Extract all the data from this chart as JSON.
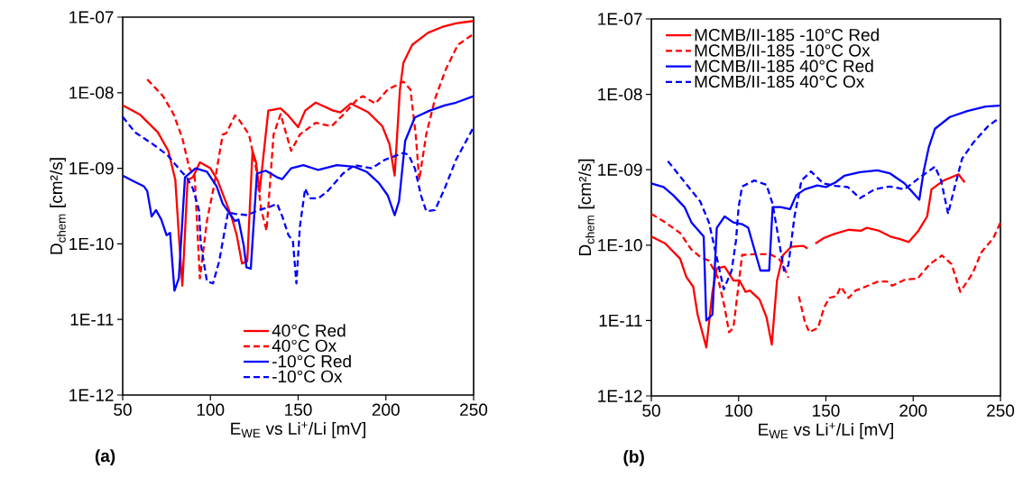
{
  "chart_data": [
    {
      "type": "line",
      "xlabel": "E$_{WE}$ vs Li$^{+}$/Li [mV]",
      "ylabel": "D$_{chem}$ [cm²/s]",
      "log": "y",
      "legend": "bottom",
      "grid": false,
      "marker": "none",
      "xlim": [
        50,
        250
      ],
      "xticks": [
        50,
        100,
        150,
        200,
        250
      ],
      "ylim": [
        1e-12,
        1e-07
      ],
      "yticks": [
        {
          "value": 1e-12,
          "label": "1E-12"
        },
        {
          "value": 1e-11,
          "label": "1E-11"
        },
        {
          "value": 1e-10,
          "label": "1E-10"
        },
        {
          "value": 1e-09,
          "label": "1E-09"
        },
        {
          "value": 1e-08,
          "label": "1E-08"
        },
        {
          "value": 1e-07,
          "label": "1E-07"
        }
      ],
      "annotations": [
        "(a)"
      ],
      "series": [
        {
          "name": "40°C Red",
          "color": "#ff0000",
          "line_style": "solid",
          "x": [
            50,
            60,
            70,
            76,
            80,
            82,
            84,
            87,
            90,
            94,
            100,
            104,
            108,
            112,
            115,
            118,
            121,
            124,
            126,
            128,
            133,
            140,
            144,
            150,
            154,
            160,
            170,
            174,
            180,
            190,
            198,
            202,
            205,
            208,
            210,
            215,
            224,
            232,
            240,
            250
          ],
          "values": [
            6.8e-09,
            5.1e-09,
            3e-09,
            1.7e-09,
            7e-10,
            1.3e-10,
            2.8e-11,
            7e-10,
            7.6e-10,
            1.2e-09,
            1e-09,
            7e-10,
            4e-10,
            2.3e-10,
            1.3e-10,
            5.5e-11,
            5.9e-11,
            1.7e-09,
            1.2e-09,
            4.9e-10,
            5.8e-09,
            6.2e-09,
            5.1e-09,
            3.5e-09,
            5.8e-09,
            7.4e-09,
            5.8e-09,
            5.5e-09,
            7.2e-09,
            5.5e-09,
            3.6e-09,
            2.1e-09,
            8e-10,
            1.1e-08,
            2.5e-08,
            4.3e-08,
            6.2e-08,
            7.4e-08,
            8.3e-08,
            8.9e-08
          ]
        },
        {
          "name": "40°C Ox",
          "color": "#ff0000",
          "line_style": "dashed",
          "x": [
            64,
            73,
            79,
            84,
            88,
            91,
            94,
            98,
            102,
            107,
            109,
            114,
            116,
            122,
            126,
            129,
            132,
            136,
            140,
            146,
            151,
            160,
            169,
            176,
            184,
            187,
            194,
            201,
            210,
            214,
            217,
            219,
            223,
            228,
            234,
            241,
            250
          ],
          "values": [
            1.5e-08,
            9e-09,
            5.2e-09,
            2.5e-09,
            1e-09,
            8e-10,
            3.5e-11,
            2e-10,
            5.8e-10,
            2.8e-09,
            2.9e-09,
            5e-09,
            4.5e-09,
            2.8e-09,
            1e-09,
            2.8e-10,
            1.5e-10,
            2.8e-09,
            5.2e-09,
            1.7e-09,
            2.8e-09,
            4e-09,
            3.6e-09,
            5.2e-09,
            8.3e-09,
            9e-09,
            7.2e-09,
            1.1e-08,
            1.4e-08,
            1.1e-08,
            2.8e-09,
            7e-10,
            2.8e-09,
            8.3e-09,
            2e-08,
            4.3e-08,
            6e-08
          ]
        },
        {
          "name": "-10°C Red",
          "color": "#0000ff",
          "line_style": "solid",
          "x": [
            50,
            57,
            62,
            64,
            66.5,
            69,
            72,
            75,
            77,
            79.5,
            82,
            85.5,
            91.5,
            98,
            103.5,
            107,
            114,
            116,
            119,
            120.5,
            123,
            126.5,
            131.5,
            138,
            141,
            146,
            153,
            161.5,
            172,
            182,
            189,
            196,
            201,
            205,
            207.5,
            211,
            216.5,
            225,
            233.5,
            240,
            250
          ],
          "values": [
            8e-10,
            6.6e-10,
            5.8e-10,
            5e-10,
            2.3e-10,
            2.8e-10,
            2.1e-10,
            1.3e-10,
            1.4e-10,
            2.4e-11,
            3.5e-11,
            7.6e-10,
            1e-09,
            9e-10,
            5.8e-10,
            3.4e-10,
            2e-10,
            2.1e-10,
            9.5e-11,
            4.9e-11,
            4.7e-11,
            8.5e-10,
            9.3e-10,
            7.6e-10,
            7.2e-10,
            1e-09,
            1.1e-09,
            9.5e-10,
            1.1e-09,
            1.05e-09,
            9e-10,
            6.4e-10,
            4.4e-10,
            2.4e-10,
            3.7e-10,
            2.3e-09,
            4.7e-09,
            5.8e-09,
            6.8e-09,
            7.4e-09,
            9e-09
          ]
        },
        {
          "name": "-10°C Ox",
          "color": "#0000ff",
          "line_style": "dashed",
          "x": [
            50,
            57,
            67,
            75.5,
            83,
            86.5,
            90,
            93.5,
            94.5,
            98,
            101.5,
            105,
            110,
            114,
            121,
            127.5,
            132.5,
            138,
            141,
            144.5,
            147,
            149,
            151,
            154,
            156.5,
            161.5,
            166.5,
            175.5,
            182,
            192,
            199.5,
            210,
            213,
            216.5,
            220,
            223,
            228,
            233.5,
            240,
            250
          ],
          "values": [
            4.8e-09,
            3e-09,
            2.1e-09,
            1.5e-09,
            9.3e-10,
            7.6e-10,
            5.4e-10,
            2.8e-10,
            1e-10,
            3.2e-11,
            3e-11,
            5.9e-11,
            2.6e-10,
            2.5e-10,
            2.4e-10,
            2.8e-10,
            3e-10,
            3.4e-10,
            2.3e-10,
            1.3e-10,
            1.1e-10,
            3e-11,
            1.7e-10,
            5.4e-10,
            4e-10,
            4e-10,
            4.9e-10,
            8.5e-10,
            1.1e-09,
            1e-09,
            1.3e-09,
            1.6e-09,
            1.5e-09,
            1e-09,
            4.4e-10,
            2.7e-10,
            2.8e-10,
            5.4e-10,
            1.3e-09,
            3.5e-09
          ]
        }
      ]
    },
    {
      "type": "line",
      "xlabel": "E$_{WE}$ vs Li$^{+}$/Li [mV]",
      "ylabel": "D$_{chem}$ [cm²/s]",
      "log": "y",
      "legend": "top left",
      "grid": false,
      "marker": "none",
      "xlim": [
        50,
        250
      ],
      "xticks": [
        50,
        100,
        150,
        200,
        250
      ],
      "ylim": [
        1e-12,
        1e-07
      ],
      "yticks": [
        {
          "value": 1e-12,
          "label": "1E-12"
        },
        {
          "value": 1e-11,
          "label": "1E-11"
        },
        {
          "value": 1e-10,
          "label": "1E-10"
        },
        {
          "value": 1e-09,
          "label": "1E-09"
        },
        {
          "value": 1e-08,
          "label": "1E-08"
        },
        {
          "value": 1e-07,
          "label": "1E-07"
        }
      ],
      "annotations": [
        "(b)"
      ],
      "series": [
        {
          "name": "MCMB/II-185 -10°C Red",
          "color": "#ff0000",
          "line_style": "solid",
          "x": [
            50,
            58,
            66.5,
            70,
            74,
            76.5,
            81.5,
            85,
            87.5,
            92,
            97,
            100.5,
            104,
            106.5,
            112,
            116,
            119,
            122,
            125.5,
            130,
            137,
            139.5,
            142,
            144,
            149,
            154.5,
            163,
            170,
            173.5,
            180.5,
            187,
            192.5,
            197.5,
            203,
            208,
            210.5,
            217.5,
            226,
            229.5
          ],
          "values": [
            1.3e-10,
            1.05e-10,
            6.6e-11,
            3.8e-11,
            2.8e-11,
            1.2e-11,
            4.4e-12,
            2.4e-11,
            4.9e-11,
            5.2e-11,
            3.4e-11,
            3.4e-11,
            2.4e-11,
            2.5e-11,
            1.9e-11,
            1.1e-11,
            4.8e-12,
            3.4e-11,
            7.4e-11,
            9.5e-11,
            9.8e-11,
            9e-11,
            null,
            1.05e-10,
            1.25e-10,
            1.4e-10,
            1.6e-10,
            1.55e-10,
            1.7e-10,
            1.55e-10,
            1.3e-10,
            1.2e-10,
            1.1e-10,
            1.55e-10,
            2.4e-10,
            5.5e-10,
            7.2e-10,
            8.7e-10,
            6.8e-10
          ]
        },
        {
          "name": "MCMB/II-185 -10°C Ox",
          "color": "#ff0000",
          "line_style": "dashed",
          "x": [
            50,
            58,
            66.5,
            73,
            78,
            83,
            88,
            92,
            94.5,
            97,
            99.5,
            102,
            109,
            118,
            123,
            125.5,
            128.5,
            131,
            134.5,
            138,
            140.5,
            145.5,
            149,
            152,
            156,
            158.5,
            163,
            167,
            172.5,
            180,
            185,
            188,
            195.5,
            202.5,
            209.5,
            216.5,
            222,
            227,
            234,
            239,
            246,
            250
          ],
          "values": [
            2.6e-10,
            2e-10,
            1.45e-10,
            8.7e-11,
            7e-11,
            6.2e-11,
            3.8e-11,
            1.5e-11,
            7e-12,
            8e-12,
            2.4e-11,
            7.4e-11,
            7.6e-11,
            7.6e-11,
            6.6e-11,
            5.5e-11,
            3.7e-11,
            null,
            2.1e-11,
            9.5e-12,
            7e-12,
            8e-12,
            1.5e-11,
            2e-11,
            2.1e-11,
            2.8e-11,
            2e-11,
            2.5e-11,
            2.8e-11,
            3.3e-11,
            3.3e-11,
            2.9e-11,
            3.5e-11,
            3.6e-11,
            5.6e-11,
            7.3e-11,
            5.6e-11,
            2.4e-11,
            4.2e-11,
            8e-11,
            1.25e-10,
            2e-10
          ]
        },
        {
          "name": "MCMB/II-185 40°C Red",
          "color": "#0000ff",
          "line_style": "solid",
          "x": [
            50,
            57,
            62.5,
            69,
            73,
            80,
            81.5,
            85,
            87.5,
            92,
            97,
            102,
            105.5,
            112.5,
            117.5,
            119.5,
            124,
            129.5,
            133,
            138,
            145,
            150,
            155.5,
            160.5,
            169.5,
            179.5,
            186.5,
            195,
            203.5,
            206,
            209,
            212.5,
            221,
            231,
            241.5,
            249.5
          ],
          "values": [
            6.6e-10,
            5.9e-10,
            4.6e-10,
            3.2e-10,
            2e-10,
            1.3e-10,
            1e-11,
            1.2e-11,
            1.7e-10,
            2.4e-10,
            2e-10,
            1.9e-10,
            1.7e-10,
            4.6e-11,
            4.6e-11,
            3.2e-10,
            3.2e-10,
            3e-10,
            4.6e-10,
            5.5e-10,
            6.2e-10,
            5.9e-10,
            6.8e-10,
            8.3e-10,
            9.3e-10,
            9.8e-10,
            9e-10,
            6.6e-10,
            4e-10,
            9.5e-10,
            2e-09,
            3.5e-09,
            5e-09,
            6e-09,
            6.9e-09,
            7.1e-09
          ]
        },
        {
          "name": "MCMB/II-185 40°C Ox",
          "color": "#0000ff",
          "line_style": "dashed",
          "x": [
            59.5,
            69,
            78,
            83,
            91.5,
            96,
            98.5,
            100,
            102,
            109,
            116,
            119.5,
            126,
            128.5,
            132,
            136,
            141.5,
            148.5,
            155.5,
            162.5,
            169.5,
            178,
            186.5,
            195,
            203.5,
            212.5,
            216,
            220,
            222.5,
            228,
            234.5,
            243,
            248.5
          ],
          "values": [
            1.3e-09,
            6.9e-10,
            3.8e-10,
            2e-10,
            2.6e-11,
            4.6e-11,
            1.15e-10,
            3.2e-10,
            6e-10,
            7.2e-10,
            6.3e-10,
            3.5e-10,
            4.6e-11,
            5.4e-11,
            2.4e-10,
            7.2e-10,
            9.5e-10,
            6.6e-10,
            6.1e-10,
            5.9e-10,
            4.2e-10,
            5.5e-10,
            6e-10,
            5.5e-10,
            7.8e-10,
            1.1e-09,
            7.2e-10,
            2.6e-10,
            4.5e-10,
            1.4e-09,
            2.3e-09,
            3.8e-09,
            4.7e-09
          ]
        }
      ]
    }
  ]
}
